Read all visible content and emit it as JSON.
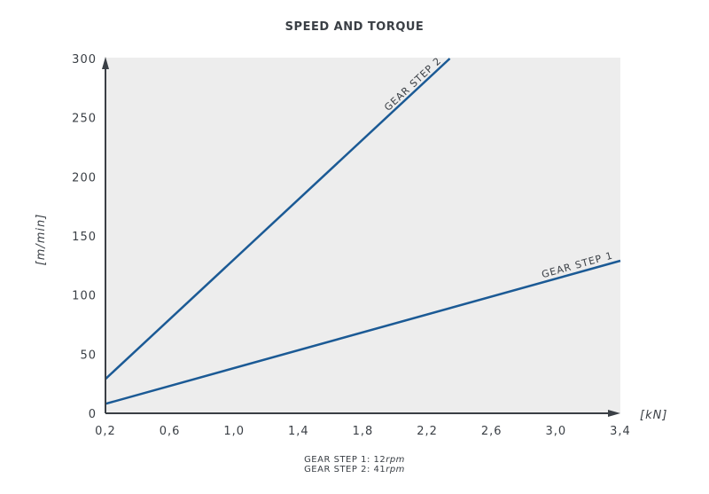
{
  "title": "SPEED AND TORQUE",
  "colors": {
    "line": "#1b5a95",
    "axis": "#3a3f45",
    "plot_bg": "#ededed",
    "text": "#3a3f45"
  },
  "axes": {
    "xlabel": "[kN]",
    "ylabel": "[m/min]",
    "x_ticks": [
      "0,2",
      "0,6",
      "1,0",
      "1,4",
      "1,8",
      "2,2",
      "2,6",
      "3,0",
      "3,4"
    ],
    "y_ticks": [
      "0",
      "50",
      "100",
      "150",
      "200",
      "250",
      "300"
    ]
  },
  "footnote": [
    {
      "label": "GEAR STEP 1: 12",
      "unit": "rpm"
    },
    {
      "label": "GEAR STEP 2: 41",
      "unit": "rpm"
    }
  ],
  "chart_data": {
    "type": "line",
    "title": "SPEED AND TORQUE",
    "xlabel": "[kN]",
    "ylabel": "[m/min]",
    "xlim": [
      0.2,
      3.4
    ],
    "ylim": [
      0,
      300
    ],
    "x_tick_values": [
      0.2,
      0.6,
      1.0,
      1.4,
      1.8,
      2.2,
      2.6,
      3.0,
      3.4
    ],
    "y_tick_values": [
      0,
      50,
      100,
      150,
      200,
      250,
      300
    ],
    "grid": false,
    "legend": "inline labels along lines",
    "series": [
      {
        "name": "GEAR STEP 1",
        "x": [
          0.2,
          3.4
        ],
        "y": [
          8,
          129
        ],
        "rpm": 12
      },
      {
        "name": "GEAR STEP 2",
        "x": [
          0.2,
          2.34
        ],
        "y": [
          29,
          300
        ],
        "rpm": 41
      }
    ],
    "annotations": [
      "GEAR STEP 1: 12rpm",
      "GEAR STEP 2: 41rpm"
    ]
  }
}
